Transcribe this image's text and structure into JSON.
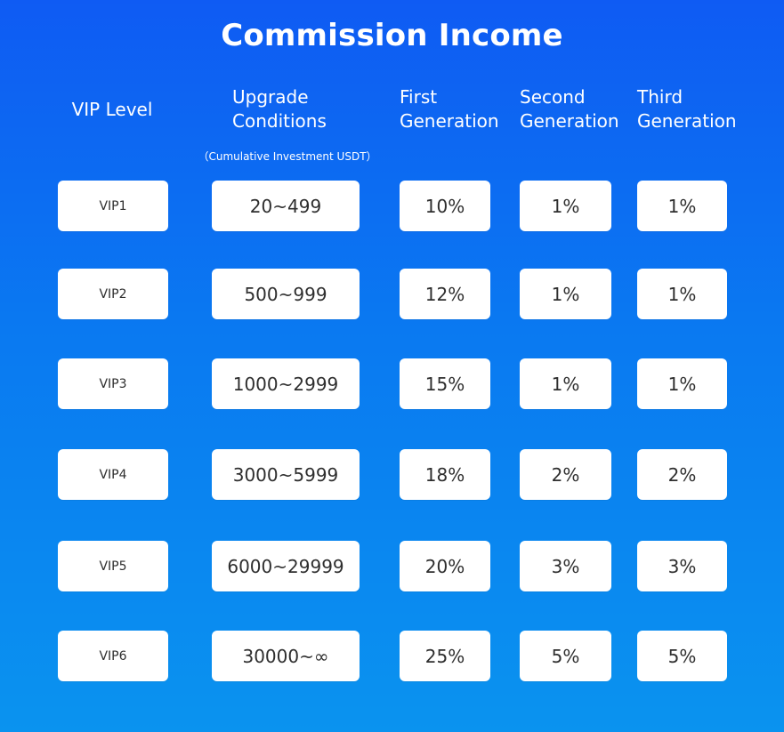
{
  "title": "Commission Income",
  "headers": {
    "vip_level": "VIP Level",
    "upgrade": "Upgrade\nConditions",
    "upgrade_note": "（Cumulative Investment USDT）",
    "first": "First\nGeneration",
    "second": "Second\nGeneration",
    "third": "Third\nGeneration"
  },
  "rows": [
    {
      "vip": "VIP1",
      "range": "20~499",
      "first": "10%",
      "second": "1%",
      "third": "1%"
    },
    {
      "vip": "VIP2",
      "range": "500~999",
      "first": "12%",
      "second": "1%",
      "third": "1%"
    },
    {
      "vip": "VIP3",
      "range": "1000~2999",
      "first": "15%",
      "second": "1%",
      "third": "1%"
    },
    {
      "vip": "VIP4",
      "range": "3000~5999",
      "first": "18%",
      "second": "2%",
      "third": "2%"
    },
    {
      "vip": "VIP5",
      "range": "6000~29999",
      "first": "20%",
      "second": "3%",
      "third": "3%"
    },
    {
      "vip": "VIP6",
      "range": "30000~∞",
      "first": "25%",
      "second": "5%",
      "third": "5%"
    }
  ],
  "colors": {
    "gradient_top": "#0f5bf3",
    "gradient_bottom": "#0a93ef",
    "cell_bg": "#ffffff",
    "cell_text": "#2e2e2e"
  }
}
